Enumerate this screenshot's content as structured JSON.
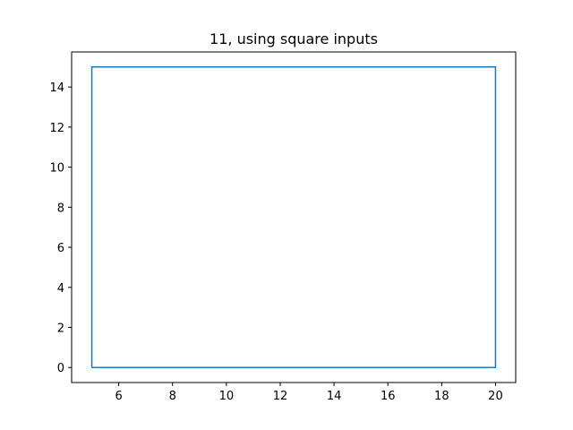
{
  "chart_data": {
    "type": "line",
    "title": "11, using square inputs",
    "xlabel": "",
    "ylabel": "",
    "xlim": [
      4.25,
      20.75
    ],
    "ylim": [
      -0.75,
      15.75
    ],
    "x_ticks": [
      6,
      8,
      10,
      12,
      14,
      16,
      18,
      20
    ],
    "y_ticks": [
      0,
      2,
      4,
      6,
      8,
      10,
      12,
      14
    ],
    "grid": false,
    "series": [
      {
        "color": "#1f77b4",
        "x": [
          5,
          20,
          20,
          5,
          5
        ],
        "y": [
          0,
          0,
          15,
          15,
          0
        ]
      }
    ]
  }
}
